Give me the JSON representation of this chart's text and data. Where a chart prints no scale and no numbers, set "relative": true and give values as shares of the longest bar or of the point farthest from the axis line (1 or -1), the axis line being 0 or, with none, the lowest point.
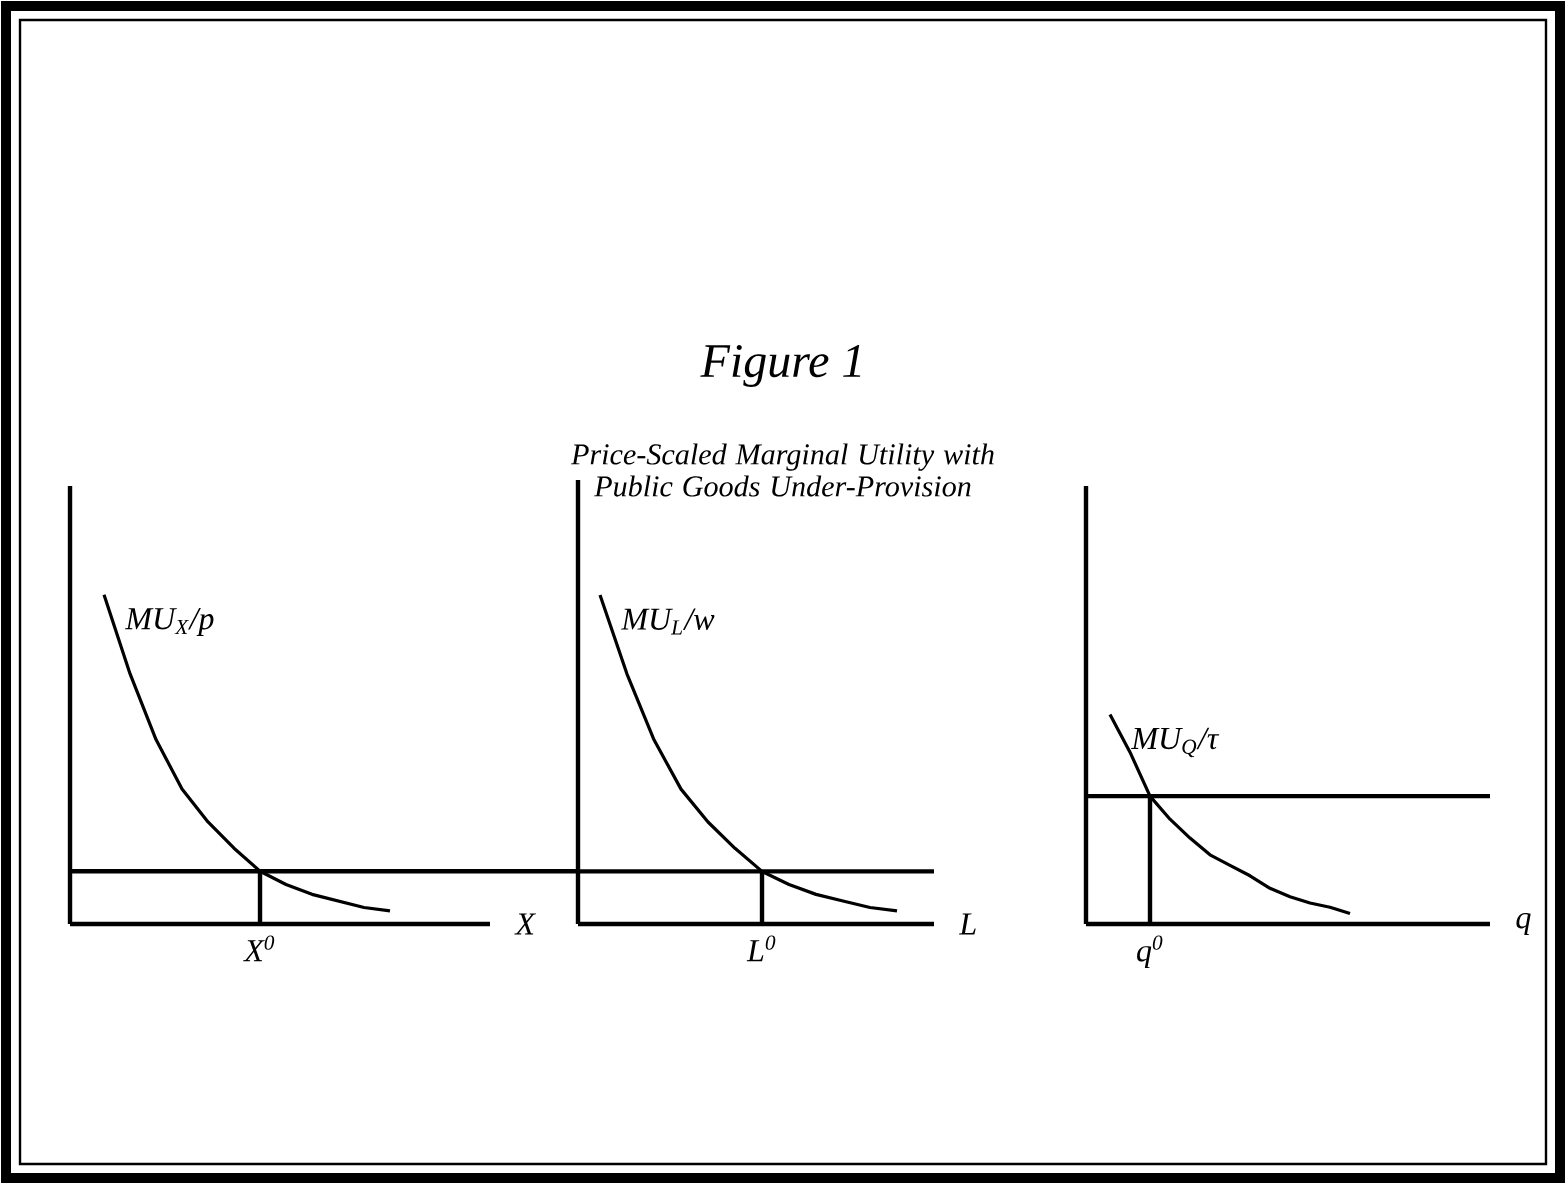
{
  "chart_data": [
    {
      "type": "other",
      "title": "Figure 1",
      "subtitle": "Price-Scaled Marginal Utility with Public Goods Under-Provision"
    },
    {
      "type": "line",
      "relative": true,
      "xlabel": "X",
      "annotations": [
        "X$^{0}$"
      ],
      "categories": [
        null,
        null,
        null,
        null,
        null,
        null,
        null,
        null,
        null,
        null,
        null,
        null
      ],
      "series": [
        {
          "name": "MU$_{X}$/p",
          "color": "#000000",
          "values": [
            1,
            0.76,
            0.56,
            0.41,
            0.31,
            0.23,
            0.16,
            0.12,
            0.09,
            0.07,
            0.05,
            0.04
          ]
        }
      ],
      "ref_lines": [
        {
          "axis": "y",
          "value": 0.16,
          "color": "#000000"
        }
      ]
    },
    {
      "type": "line",
      "relative": true,
      "xlabel": "L",
      "annotations": [
        "L$^{0}$"
      ],
      "categories": [
        null,
        null,
        null,
        null,
        null,
        null,
        null,
        null,
        null,
        null,
        null,
        null
      ],
      "series": [
        {
          "name": "MU$_{L}$/w",
          "color": "#000000",
          "values": [
            1,
            0.76,
            0.56,
            0.41,
            0.31,
            0.23,
            0.16,
            0.12,
            0.09,
            0.07,
            0.05,
            0.04
          ]
        }
      ],
      "ref_lines": [
        {
          "axis": "y",
          "value": 0.16,
          "color": "#000000"
        }
      ]
    },
    {
      "type": "line",
      "relative": true,
      "xlabel": "q",
      "annotations": [
        "q$^{0}$"
      ],
      "categories": [
        null,
        null,
        null,
        null,
        null,
        null,
        null,
        null,
        null,
        null,
        null,
        null,
        null
      ],
      "series": [
        {
          "name": "MU$_{Q}$/τ",
          "color": "#000000",
          "values": [
            1,
            0.82,
            0.61,
            0.5,
            0.41,
            0.33,
            0.28,
            0.23,
            0.17,
            0.13,
            0.1,
            0.08,
            0.05
          ]
        }
      ],
      "ref_lines": [
        {
          "axis": "y",
          "value": 0.61,
          "color": "#000000"
        }
      ]
    }
  ]
}
